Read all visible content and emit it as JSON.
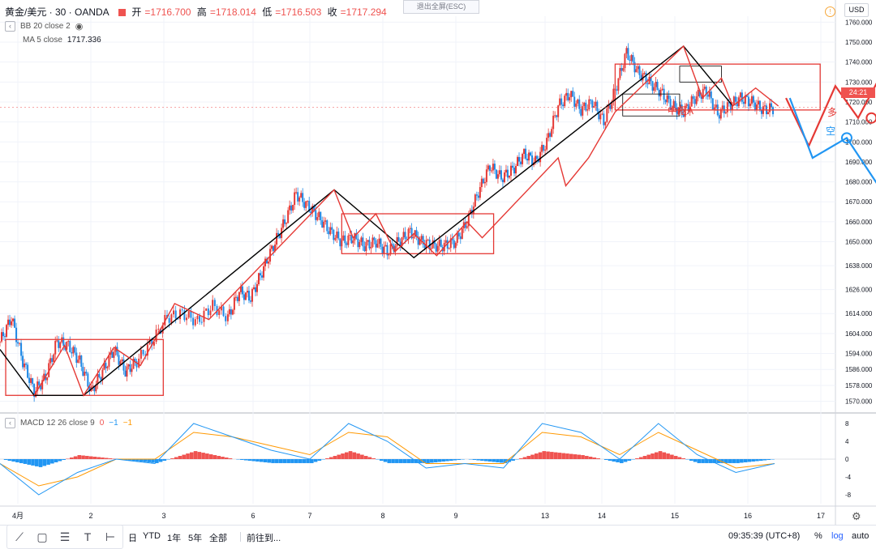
{
  "header": {
    "symbol": "黄金/美元 · 30 · OANDA",
    "open_label": "开",
    "open": "=1716.700",
    "high_label": "高",
    "high": "=1718.014",
    "low_label": "低",
    "low": "=1716.503",
    "close_label": "收",
    "close": "=1717.294"
  },
  "indicators": {
    "bb": "BB 20 close 2",
    "ma_label": "MA 5 close",
    "ma_value": "1717.336",
    "macd_label": "MACD 12 26 close 9",
    "macd_v1": "0",
    "macd_v2": "−1",
    "macd_v3": "−1"
  },
  "exit_fullscreen": "退出全屏(ESC)",
  "currency": "USD",
  "last_price_tag": "24:21",
  "annotations": {
    "zone_a": "中枢A",
    "long": "多",
    "short": "空"
  },
  "toolbar": {
    "day": "日",
    "ytd": "YTD",
    "y1": "1年",
    "y5": "5年",
    "all": "全部",
    "goto": "前往到...",
    "time": "09:35:39 (UTC+8)",
    "pct": "%",
    "log": "log",
    "auto": "auto"
  },
  "tools": [
    "line-tool-icon",
    "rectangle-tool-icon",
    "fib-tool-icon",
    "text-tool-icon",
    "measure-tool-icon"
  ],
  "colors": {
    "up": "#26a69a",
    "down": "#1e88e5",
    "red": "#e53935",
    "black": "#000000",
    "blue_arrow": "#2196f3",
    "macd_hist_pos": "#ef5350",
    "macd_hist_neg": "#2196f3",
    "macd_line": "#2196f3",
    "signal_line": "#ff9800"
  },
  "chart_data": {
    "type": "line",
    "title": "黄金/美元 · 30 · OANDA",
    "xlabel": "",
    "ylabel": "",
    "x_ticks": [
      "4月",
      "2",
      "3",
      "6",
      "7",
      "8",
      "9",
      "13",
      "14",
      "15",
      "16",
      "17"
    ],
    "y_ticks": [
      1570,
      1578,
      1586,
      1594,
      1604,
      1614,
      1626,
      1638,
      1650,
      1660,
      1670,
      1680,
      1690,
      1700,
      1710,
      1720,
      1730,
      1740,
      1750,
      1760
    ],
    "ylim": [
      1565,
      1763
    ],
    "macd_ticks": [
      8,
      4,
      0,
      -4,
      -8
    ],
    "macd_ylim": [
      -10,
      10
    ],
    "series": [
      {
        "name": "",
        "note": "price path (approx.)",
        "x": [
          0,
          0.3,
          0.6,
          0.9,
          1.2,
          1.5,
          1.8,
          2.1,
          2.4,
          2.7,
          3.0,
          3.3,
          3.6,
          4.0,
          4.4,
          4.8,
          5.2,
          5.6,
          6.0,
          6.3,
          6.6,
          6.9,
          7.2,
          7.5,
          7.8,
          8.1,
          8.4,
          8.7,
          9.0,
          9.3,
          9.6,
          9.9,
          10.2,
          10.5,
          10.8,
          11.1,
          11.4,
          11.7,
          12.0,
          12.3,
          12.6,
          12.9,
          13.2,
          13.5,
          13.8,
          14.1,
          14.4,
          14.7,
          15.0,
          15.3,
          15.6,
          15.9,
          16.2,
          16.5,
          16.8,
          17.1,
          17.4,
          17.7,
          18.0,
          18.3,
          18.6,
          18.9,
          19.2,
          19.5,
          19.8,
          20.1,
          20.4
        ],
        "y": [
          1600,
          1612,
          1590,
          1575,
          1582,
          1600,
          1598,
          1590,
          1575,
          1585,
          1596,
          1585,
          1590,
          1600,
          1612,
          1614,
          1610,
          1618,
          1612,
          1625,
          1622,
          1635,
          1648,
          1660,
          1674,
          1668,
          1662,
          1655,
          1650,
          1652,
          1648,
          1650,
          1645,
          1650,
          1655,
          1650,
          1648,
          1648,
          1650,
          1660,
          1675,
          1688,
          1682,
          1686,
          1694,
          1690,
          1700,
          1718,
          1724,
          1716,
          1720,
          1710,
          1726,
          1745,
          1735,
          1730,
          1725,
          1718,
          1715,
          1722,
          1726,
          1714,
          1718,
          1722,
          1720,
          1716,
          1717
        ]
      }
    ],
    "macd": {
      "x": [
        0,
        1,
        2,
        3,
        4,
        5,
        6,
        7,
        8,
        9,
        10,
        11,
        12,
        13,
        14,
        15,
        16,
        17,
        18,
        19,
        20
      ],
      "macd": [
        -1,
        -8,
        -3,
        0,
        -1,
        8,
        5,
        2,
        0,
        8,
        4,
        -2,
        -1,
        -2,
        8,
        6,
        0,
        8,
        1,
        -3,
        -1
      ],
      "signal": [
        -1,
        -6,
        -4,
        0,
        0,
        6,
        5,
        3,
        1,
        6,
        5,
        -1,
        -1,
        -1,
        6,
        5,
        1,
        6,
        2,
        -2,
        -1
      ]
    }
  }
}
